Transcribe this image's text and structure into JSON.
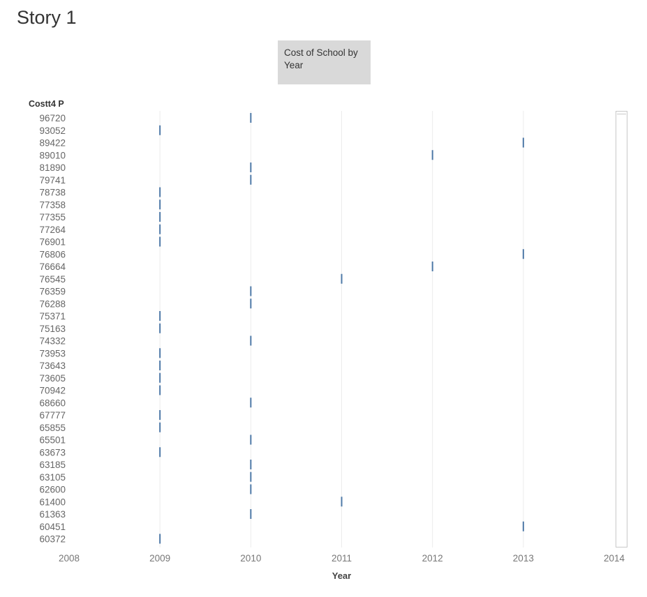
{
  "story": {
    "title": "Story 1",
    "story_point_caption": "Cost of School by Year"
  },
  "chart_data": {
    "type": "scatter",
    "mark": "tick",
    "row_field": "Costt4 P",
    "xlabel": "Year",
    "xlim": [
      2008,
      2014
    ],
    "xticks": [
      "2008",
      "2009",
      "2010",
      "2011",
      "2012",
      "2013",
      "2014"
    ],
    "grid": true,
    "color": "#4e79a7",
    "rows": [
      {
        "label": "96720",
        "year": 2010
      },
      {
        "label": "93052",
        "year": 2009
      },
      {
        "label": "89422",
        "year": 2013
      },
      {
        "label": "89010",
        "year": 2012
      },
      {
        "label": "81890",
        "year": 2010
      },
      {
        "label": "79741",
        "year": 2010
      },
      {
        "label": "78738",
        "year": 2009
      },
      {
        "label": "77358",
        "year": 2009
      },
      {
        "label": "77355",
        "year": 2009
      },
      {
        "label": "77264",
        "year": 2009
      },
      {
        "label": "76901",
        "year": 2009
      },
      {
        "label": "76806",
        "year": 2013
      },
      {
        "label": "76664",
        "year": 2012
      },
      {
        "label": "76545",
        "year": 2011
      },
      {
        "label": "76359",
        "year": 2010
      },
      {
        "label": "76288",
        "year": 2010
      },
      {
        "label": "75371",
        "year": 2009
      },
      {
        "label": "75163",
        "year": 2009
      },
      {
        "label": "74332",
        "year": 2010
      },
      {
        "label": "73953",
        "year": 2009
      },
      {
        "label": "73643",
        "year": 2009
      },
      {
        "label": "73605",
        "year": 2009
      },
      {
        "label": "70942",
        "year": 2009
      },
      {
        "label": "68660",
        "year": 2010
      },
      {
        "label": "67777",
        "year": 2009
      },
      {
        "label": "65855",
        "year": 2009
      },
      {
        "label": "65501",
        "year": 2010
      },
      {
        "label": "63673",
        "year": 2009
      },
      {
        "label": "63185",
        "year": 2010
      },
      {
        "label": "63105",
        "year": 2010
      },
      {
        "label": "62600",
        "year": 2010
      },
      {
        "label": "61400",
        "year": 2011
      },
      {
        "label": "61363",
        "year": 2010
      },
      {
        "label": "60451",
        "year": 2013
      },
      {
        "label": "60372",
        "year": 2009
      }
    ]
  }
}
